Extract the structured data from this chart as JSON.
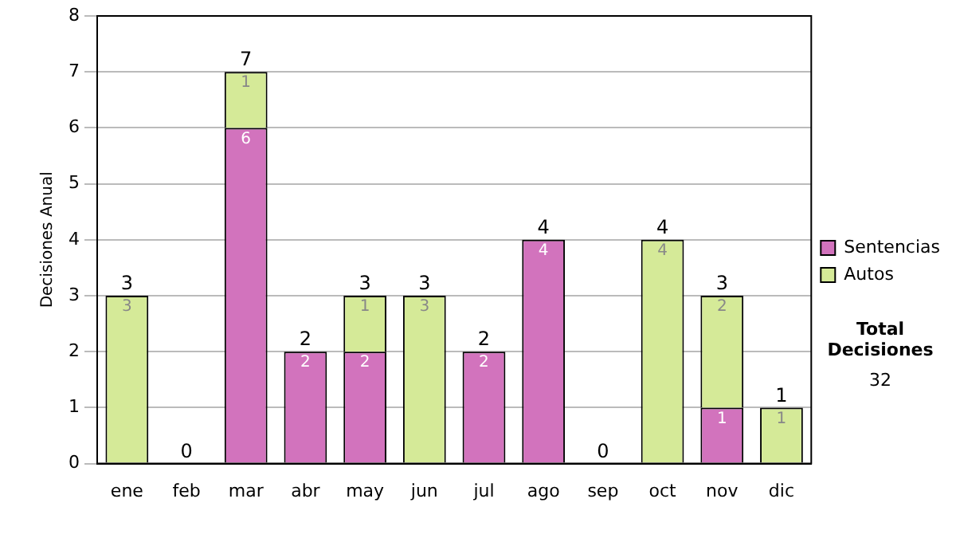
{
  "chart_data": {
    "type": "bar",
    "stacked": true,
    "ylabel": "Decisiones Anual",
    "categories": [
      "ene",
      "feb",
      "mar",
      "abr",
      "may",
      "jun",
      "jul",
      "ago",
      "sep",
      "oct",
      "nov",
      "dic"
    ],
    "series": [
      {
        "name": "Sentencias",
        "color": "#d273bd",
        "values": [
          0,
          0,
          6,
          2,
          2,
          0,
          2,
          4,
          0,
          0,
          1,
          0
        ],
        "value_labels": [
          null,
          null,
          "6",
          "2",
          "2",
          null,
          "2",
          "4",
          null,
          null,
          "1",
          null
        ]
      },
      {
        "name": "Autos",
        "color": "#d5ea98",
        "values": [
          3,
          0,
          1,
          0,
          1,
          3,
          0,
          0,
          0,
          4,
          2,
          1
        ],
        "value_labels": [
          "3",
          null,
          "1",
          null,
          "1",
          "3",
          null,
          null,
          null,
          "4",
          "2",
          "1"
        ]
      }
    ],
    "totals": [
      "3",
      "0",
      "7",
      "2",
      "3",
      "3",
      "2",
      "4",
      "0",
      "4",
      "3",
      "1"
    ],
    "ylim": [
      0,
      8
    ],
    "yticks": [
      0,
      1,
      2,
      3,
      4,
      5,
      6,
      7,
      8
    ],
    "grid": "y",
    "legend": "right",
    "annotations": [
      "Total Decisiones",
      "32"
    ]
  }
}
